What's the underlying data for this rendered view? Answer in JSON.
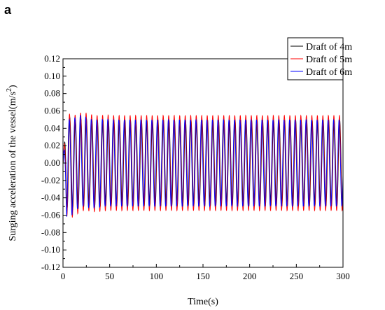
{
  "panel_label": "a",
  "chart_data": {
    "type": "line",
    "title": "",
    "xlabel": "Time(s)",
    "ylabel_main": "Surging acceleration of the vessel(m/s",
    "ylabel_sup": "2",
    "ylabel_close": ")",
    "xlim": [
      0,
      300
    ],
    "ylim": [
      -0.12,
      0.12
    ],
    "x_ticks": [
      "0",
      "50",
      "100",
      "150",
      "200",
      "250",
      "300"
    ],
    "y_ticks": [
      "-0.12",
      "-0.10",
      "-0.08",
      "-0.06",
      "-0.04",
      "-0.02",
      "0.00",
      "0.02",
      "0.04",
      "0.06",
      "0.08",
      "0.10",
      "0.12"
    ],
    "grid": false,
    "legend_position": "top-right",
    "oscillation_period_s": 5.9,
    "series": [
      {
        "name": "Draft of 4m",
        "color": "#000000",
        "steady_amplitude": 0.05,
        "peak_max": 0.06,
        "peak_min": -0.06
      },
      {
        "name": "Draft of 5m",
        "color": "#ff0000",
        "steady_amplitude": 0.055,
        "peak_max": 0.06,
        "peak_min": -0.07
      },
      {
        "name": "Draft of 6m",
        "color": "#0000ff",
        "steady_amplitude": 0.05,
        "peak_max": 0.06,
        "peak_min": -0.07
      }
    ]
  }
}
